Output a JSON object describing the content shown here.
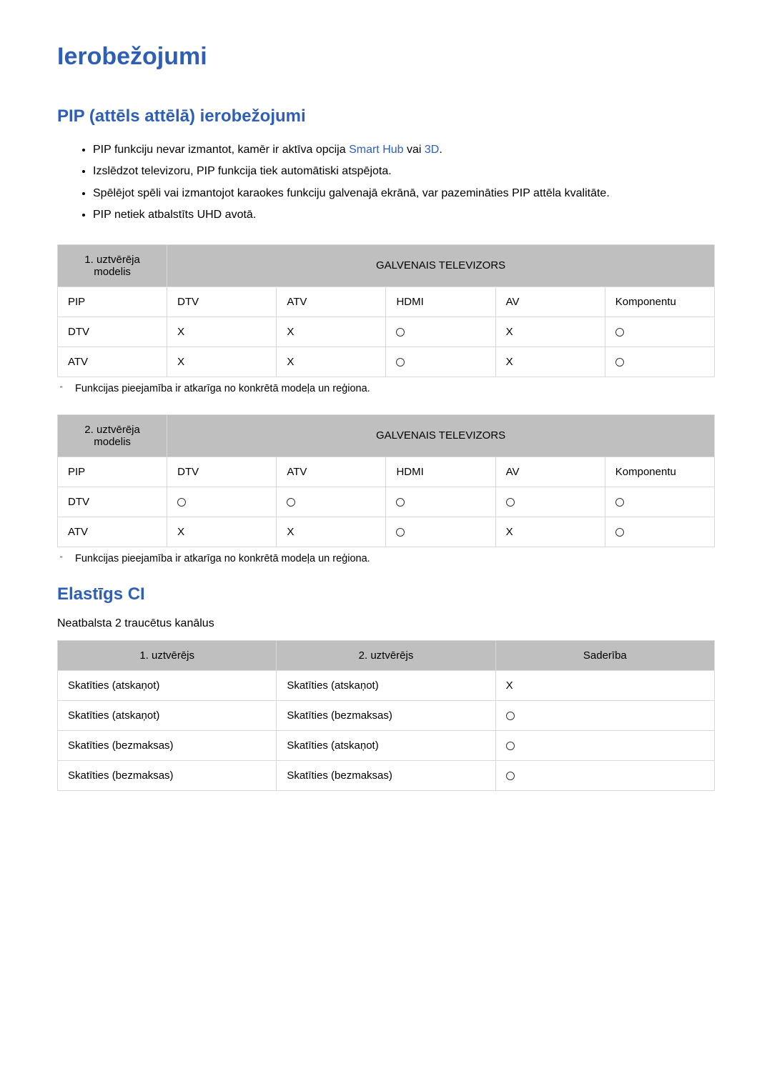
{
  "title": "Ierobežojumi",
  "section1": {
    "heading": "PIP (attēls attēlā) ierobežojumi",
    "bullets": [
      {
        "pre": "PIP funkciju nevar izmantot, kamēr ir aktīva opcija ",
        "blue1": "Smart Hub",
        "mid": " vai ",
        "blue2": "3D",
        "post": "."
      },
      {
        "pre": "Izslēdzot televizoru, PIP funkcija tiek automātiski atspējota.",
        "blue1": "",
        "mid": "",
        "blue2": "",
        "post": ""
      },
      {
        "pre": "Spēlējot spēli vai izmantojot karaokes funkciju galvenajā ekrānā, var pazemināties PIP attēla kvalitāte.",
        "blue1": "",
        "mid": "",
        "blue2": "",
        "post": ""
      },
      {
        "pre": "PIP netiek atbalstīts UHD avotā.",
        "blue1": "",
        "mid": "",
        "blue2": "",
        "post": ""
      }
    ]
  },
  "table1": {
    "header_left": "1. uztvērēja modelis",
    "header_main": "GALVENAIS TELEVIZORS",
    "cols": [
      "PIP",
      "DTV",
      "ATV",
      "HDMI",
      "AV",
      "Komponentu"
    ],
    "rows": [
      {
        "label": "DTV",
        "cells": [
          "X",
          "X",
          "O",
          "X",
          "O"
        ]
      },
      {
        "label": "ATV",
        "cells": [
          "X",
          "X",
          "O",
          "X",
          "O"
        ]
      }
    ]
  },
  "footnote1": "Funkcijas pieejamība ir atkarīga no konkrētā modeļa un reģiona.",
  "table2": {
    "header_left": "2. uztvērēja modelis",
    "header_main": "GALVENAIS TELEVIZORS",
    "cols": [
      "PIP",
      "DTV",
      "ATV",
      "HDMI",
      "AV",
      "Komponentu"
    ],
    "rows": [
      {
        "label": "DTV",
        "cells": [
          "O",
          "O",
          "O",
          "O",
          "O"
        ]
      },
      {
        "label": "ATV",
        "cells": [
          "X",
          "X",
          "O",
          "X",
          "O"
        ]
      }
    ]
  },
  "footnote2": "Funkcijas pieejamība ir atkarīga no konkrētā modeļa un reģiona.",
  "section2": {
    "heading": "Elastīgs CI",
    "subtext": "Neatbalsta 2 traucētus kanālus"
  },
  "table3": {
    "cols": [
      "1. uztvērējs",
      "2. uztvērējs",
      "Saderība"
    ],
    "rows": [
      [
        "Skatīties (atskaņot)",
        "Skatīties (atskaņot)",
        "X"
      ],
      [
        "Skatīties (atskaņot)",
        "Skatīties (bezmaksas)",
        "O"
      ],
      [
        "Skatīties (bezmaksas)",
        "Skatīties (atskaņot)",
        "O"
      ],
      [
        "Skatīties (bezmaksas)",
        "Skatīties (bezmaksas)",
        "O"
      ]
    ]
  },
  "symbols": {
    "X": "X"
  }
}
